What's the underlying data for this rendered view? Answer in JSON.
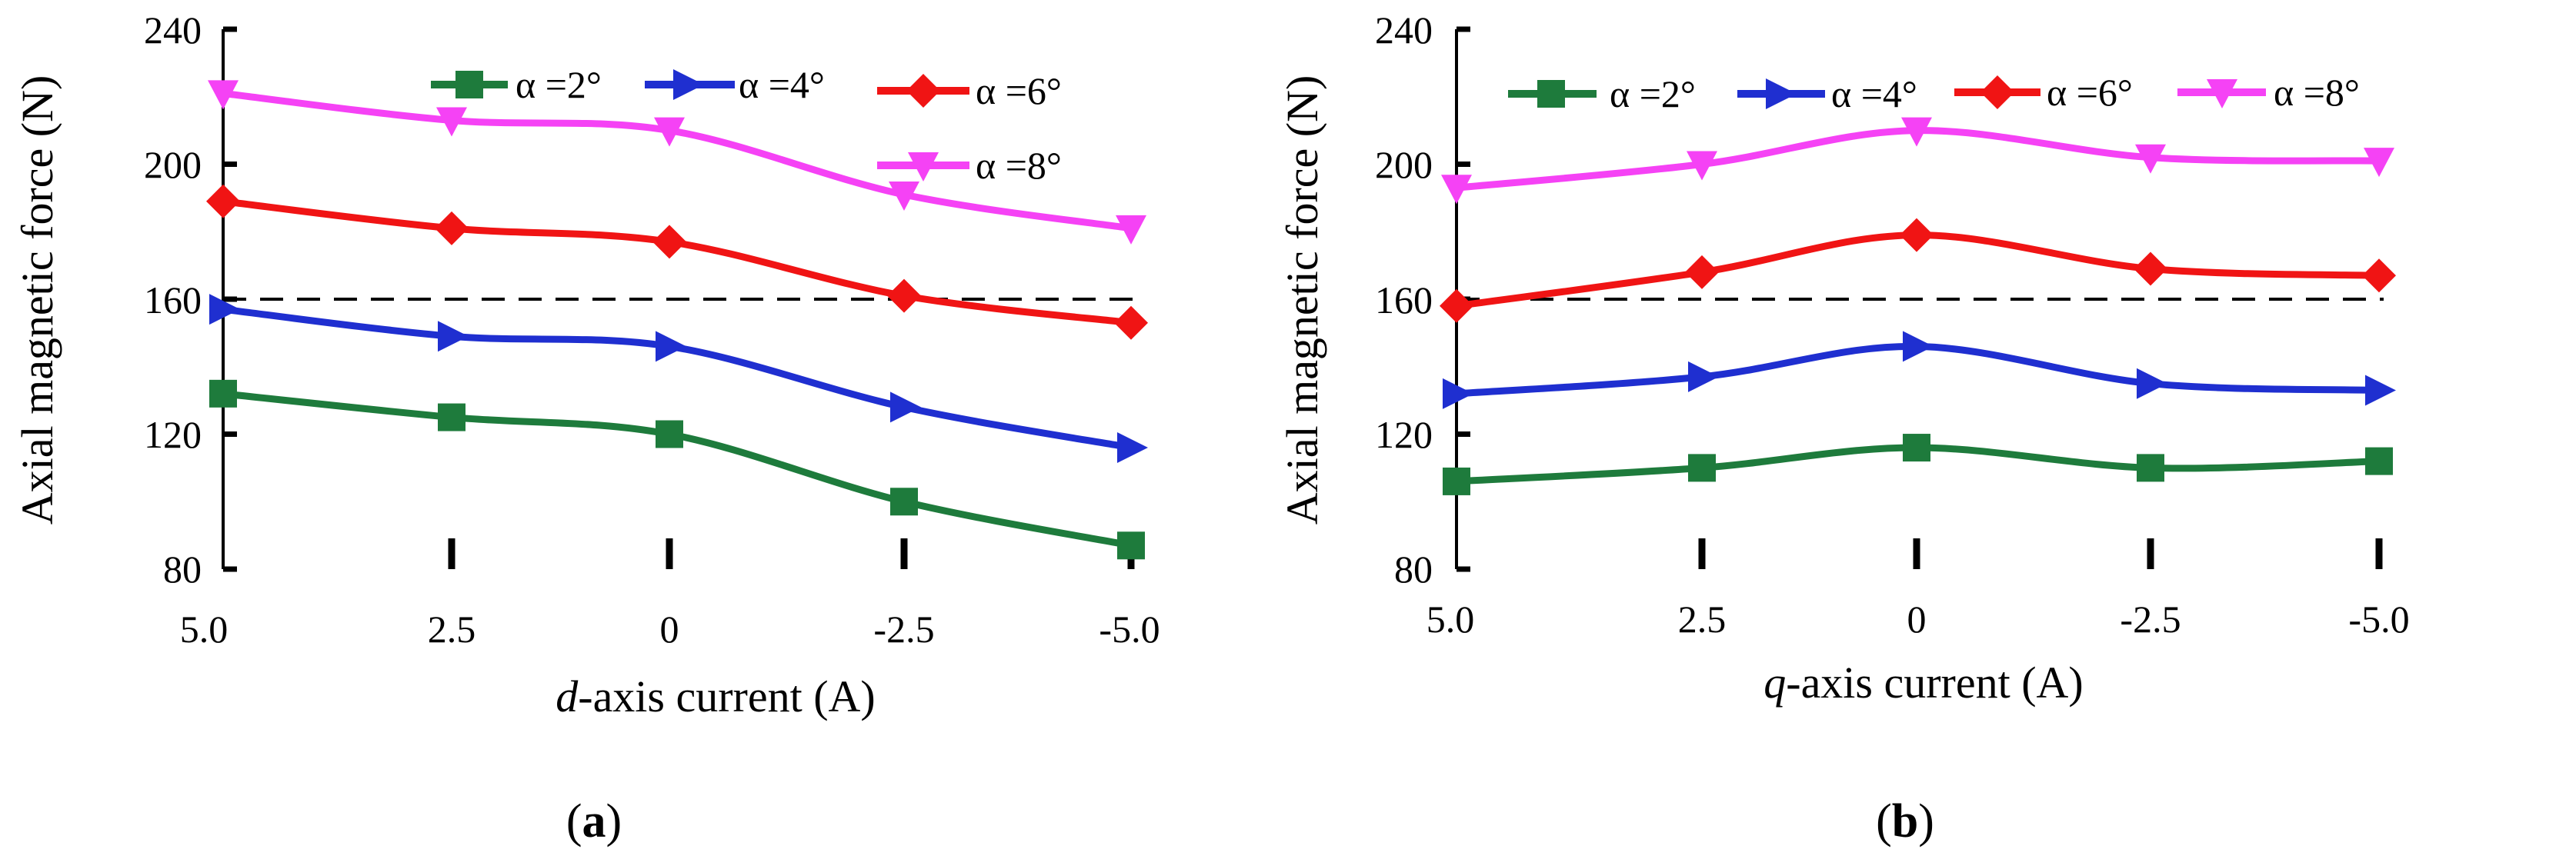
{
  "chart_data": [
    {
      "type": "line",
      "panel_label": "(a)",
      "panel_letter": "a",
      "xlabel_italic": "d",
      "xlabel_rest": "-axis current  (A)",
      "ylabel": "Axial magnetic force  (N)",
      "categories": [
        "5.0",
        "2.5",
        "0",
        "-2.5",
        "-5.0"
      ],
      "x": [
        5.0,
        2.5,
        0,
        -2.5,
        -5.0
      ],
      "ylim": [
        80,
        240
      ],
      "yticks": [
        "80",
        "120",
        "160",
        "200",
        "240"
      ],
      "reference_line": 160,
      "series": [
        {
          "name": "α =2°",
          "color": "#1e7b3c",
          "marker": "square",
          "values": [
            132,
            125,
            120,
            100,
            87
          ]
        },
        {
          "name": "α =4°",
          "color": "#1f2fd0",
          "marker": "triangle-right",
          "values": [
            157,
            149,
            146,
            128,
            116
          ]
        },
        {
          "name": "α =6°",
          "color": "#f01414",
          "marker": "diamond",
          "values": [
            189,
            181,
            177,
            161,
            153
          ]
        },
        {
          "name": "α =8°",
          "color": "#f542f5",
          "marker": "triangle-down",
          "values": [
            221,
            213,
            210,
            191,
            181
          ]
        }
      ]
    },
    {
      "type": "line",
      "panel_label": "(b)",
      "panel_letter": "b",
      "xlabel_italic": "q",
      "xlabel_rest": "-axis current  (A)",
      "ylabel": "Axial magnetic force  (N)",
      "categories": [
        "5.0",
        "2.5",
        "0",
        "-2.5",
        "-5.0"
      ],
      "x": [
        5.0,
        2.5,
        0,
        -2.5,
        -5.0
      ],
      "ylim": [
        80,
        240
      ],
      "yticks": [
        "80",
        "120",
        "160",
        "200",
        "240"
      ],
      "reference_line": 160,
      "series": [
        {
          "name": "α =2°",
          "color": "#1e7b3c",
          "marker": "square",
          "values": [
            106,
            110,
            116,
            110,
            112
          ]
        },
        {
          "name": "α =4°",
          "color": "#1f2fd0",
          "marker": "triangle-right",
          "values": [
            132,
            137,
            146,
            135,
            133
          ]
        },
        {
          "name": "α =6°",
          "color": "#f01414",
          "marker": "diamond",
          "values": [
            158,
            168,
            179,
            169,
            167
          ]
        },
        {
          "name": "α =8°",
          "color": "#f542f5",
          "marker": "triangle-down",
          "values": [
            193,
            200,
            210,
            202,
            201
          ]
        }
      ]
    }
  ]
}
